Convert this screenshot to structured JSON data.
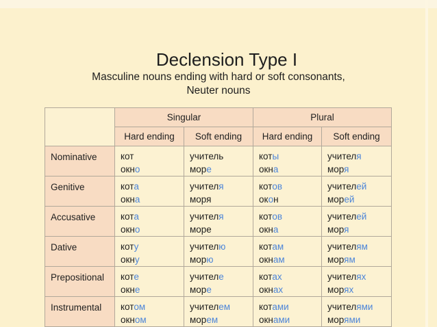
{
  "slide": {
    "title": "Declension Type I",
    "subtitle_line1": "Masculine nouns ending with hard or soft consonants,",
    "subtitle_line2": "Neuter nouns"
  },
  "colors": {
    "ending_highlight": "#4C85D9",
    "text": "#1E1E1E",
    "header_bg": "#F8DCC3",
    "cell_bg": "#FCF2D2",
    "slide_bg": "#FCF1CD",
    "border": "#B1A89A"
  },
  "table": {
    "column_groups": [
      "Singular",
      "Plural"
    ],
    "sub_headers": [
      "Hard ending",
      "Soft ending",
      "Hard ending",
      "Soft ending"
    ],
    "rows": [
      {
        "label": "Nominative",
        "cells": [
          {
            "lines": [
              [
                {
                  "t": "кот"
                }
              ],
              [
                {
                  "t": "окн"
                },
                {
                  "t": "о",
                  "end": true
                }
              ]
            ]
          },
          {
            "lines": [
              [
                {
                  "t": "учитель"
                }
              ],
              [
                {
                  "t": "мор"
                },
                {
                  "t": "е",
                  "end": true
                }
              ]
            ]
          },
          {
            "lines": [
              [
                {
                  "t": "кот"
                },
                {
                  "t": "ы",
                  "end": true
                }
              ],
              [
                {
                  "t": "окн"
                },
                {
                  "t": "а",
                  "end": true
                }
              ]
            ]
          },
          {
            "lines": [
              [
                {
                  "t": "учител"
                },
                {
                  "t": "я",
                  "end": true
                }
              ],
              [
                {
                  "t": "мор"
                },
                {
                  "t": "я",
                  "end": true
                }
              ]
            ]
          }
        ]
      },
      {
        "label": "Genitive",
        "cells": [
          {
            "lines": [
              [
                {
                  "t": "кот"
                },
                {
                  "t": "а",
                  "end": true
                }
              ],
              [
                {
                  "t": "окн"
                },
                {
                  "t": "а",
                  "end": true
                }
              ]
            ]
          },
          {
            "lines": [
              [
                {
                  "t": "учител"
                },
                {
                  "t": "я",
                  "end": true
                }
              ],
              [
                {
                  "t": "моря"
                }
              ]
            ]
          },
          {
            "lines": [
              [
                {
                  "t": "кот"
                },
                {
                  "t": "ов",
                  "end": true
                }
              ],
              [
                {
                  "t": "ок"
                },
                {
                  "t": "о",
                  "end": true
                },
                {
                  "t": "н"
                }
              ]
            ]
          },
          {
            "lines": [
              [
                {
                  "t": "учител"
                },
                {
                  "t": "ей",
                  "end": true
                }
              ],
              [
                {
                  "t": "мор"
                },
                {
                  "t": "ей",
                  "end": true
                }
              ]
            ]
          }
        ]
      },
      {
        "label": "Accusative",
        "cells": [
          {
            "lines": [
              [
                {
                  "t": "кот"
                },
                {
                  "t": "а",
                  "end": true
                }
              ],
              [
                {
                  "t": "окн"
                },
                {
                  "t": "о",
                  "end": true
                }
              ]
            ]
          },
          {
            "lines": [
              [
                {
                  "t": "учител"
                },
                {
                  "t": "я",
                  "end": true
                }
              ],
              [
                {
                  "t": "море"
                }
              ]
            ]
          },
          {
            "lines": [
              [
                {
                  "t": "кот"
                },
                {
                  "t": "ов",
                  "end": true
                }
              ],
              [
                {
                  "t": "окн"
                },
                {
                  "t": "а",
                  "end": true
                }
              ]
            ]
          },
          {
            "lines": [
              [
                {
                  "t": "учител"
                },
                {
                  "t": "ей",
                  "end": true
                }
              ],
              [
                {
                  "t": "мор"
                },
                {
                  "t": "я",
                  "end": true
                }
              ]
            ]
          }
        ]
      },
      {
        "label": "Dative",
        "cells": [
          {
            "lines": [
              [
                {
                  "t": "кот"
                },
                {
                  "t": "у",
                  "end": true
                }
              ],
              [
                {
                  "t": "окн"
                },
                {
                  "t": "у",
                  "end": true
                }
              ]
            ]
          },
          {
            "lines": [
              [
                {
                  "t": "учител"
                },
                {
                  "t": "ю",
                  "end": true
                }
              ],
              [
                {
                  "t": "мор"
                },
                {
                  "t": "ю",
                  "end": true
                }
              ]
            ]
          },
          {
            "lines": [
              [
                {
                  "t": "кот"
                },
                {
                  "t": "ам",
                  "end": true
                }
              ],
              [
                {
                  "t": "окн"
                },
                {
                  "t": "ам",
                  "end": true
                }
              ]
            ]
          },
          {
            "lines": [
              [
                {
                  "t": "учител"
                },
                {
                  "t": "ям",
                  "end": true
                }
              ],
              [
                {
                  "t": "мор"
                },
                {
                  "t": "ям",
                  "end": true
                }
              ]
            ]
          }
        ]
      },
      {
        "label": "Prepositional",
        "cells": [
          {
            "lines": [
              [
                {
                  "t": "кот"
                },
                {
                  "t": "е",
                  "end": true
                }
              ],
              [
                {
                  "t": "окн"
                },
                {
                  "t": "е",
                  "end": true
                }
              ]
            ]
          },
          {
            "lines": [
              [
                {
                  "t": "учител"
                },
                {
                  "t": "е",
                  "end": true
                }
              ],
              [
                {
                  "t": "мор"
                },
                {
                  "t": "е",
                  "end": true
                }
              ]
            ]
          },
          {
            "lines": [
              [
                {
                  "t": "кот"
                },
                {
                  "t": "ах",
                  "end": true
                }
              ],
              [
                {
                  "t": "окн"
                },
                {
                  "t": "ах",
                  "end": true
                }
              ]
            ]
          },
          {
            "lines": [
              [
                {
                  "t": "учител"
                },
                {
                  "t": "ях",
                  "end": true
                }
              ],
              [
                {
                  "t": "мор"
                },
                {
                  "t": "ях",
                  "end": true
                }
              ]
            ]
          }
        ]
      },
      {
        "label": "Instrumental",
        "cells": [
          {
            "lines": [
              [
                {
                  "t": "кот"
                },
                {
                  "t": "ом",
                  "end": true
                }
              ],
              [
                {
                  "t": "окн"
                },
                {
                  "t": "ом",
                  "end": true
                }
              ]
            ]
          },
          {
            "lines": [
              [
                {
                  "t": "учител"
                },
                {
                  "t": "ем",
                  "end": true
                }
              ],
              [
                {
                  "t": "мор"
                },
                {
                  "t": "ем",
                  "end": true
                }
              ]
            ]
          },
          {
            "lines": [
              [
                {
                  "t": "кот"
                },
                {
                  "t": "ами",
                  "end": true
                }
              ],
              [
                {
                  "t": "окн"
                },
                {
                  "t": "ами",
                  "end": true
                }
              ]
            ]
          },
          {
            "lines": [
              [
                {
                  "t": "учител"
                },
                {
                  "t": "ями",
                  "end": true
                }
              ],
              [
                {
                  "t": "мор"
                },
                {
                  "t": "ями",
                  "end": true
                }
              ]
            ]
          }
        ]
      }
    ]
  }
}
